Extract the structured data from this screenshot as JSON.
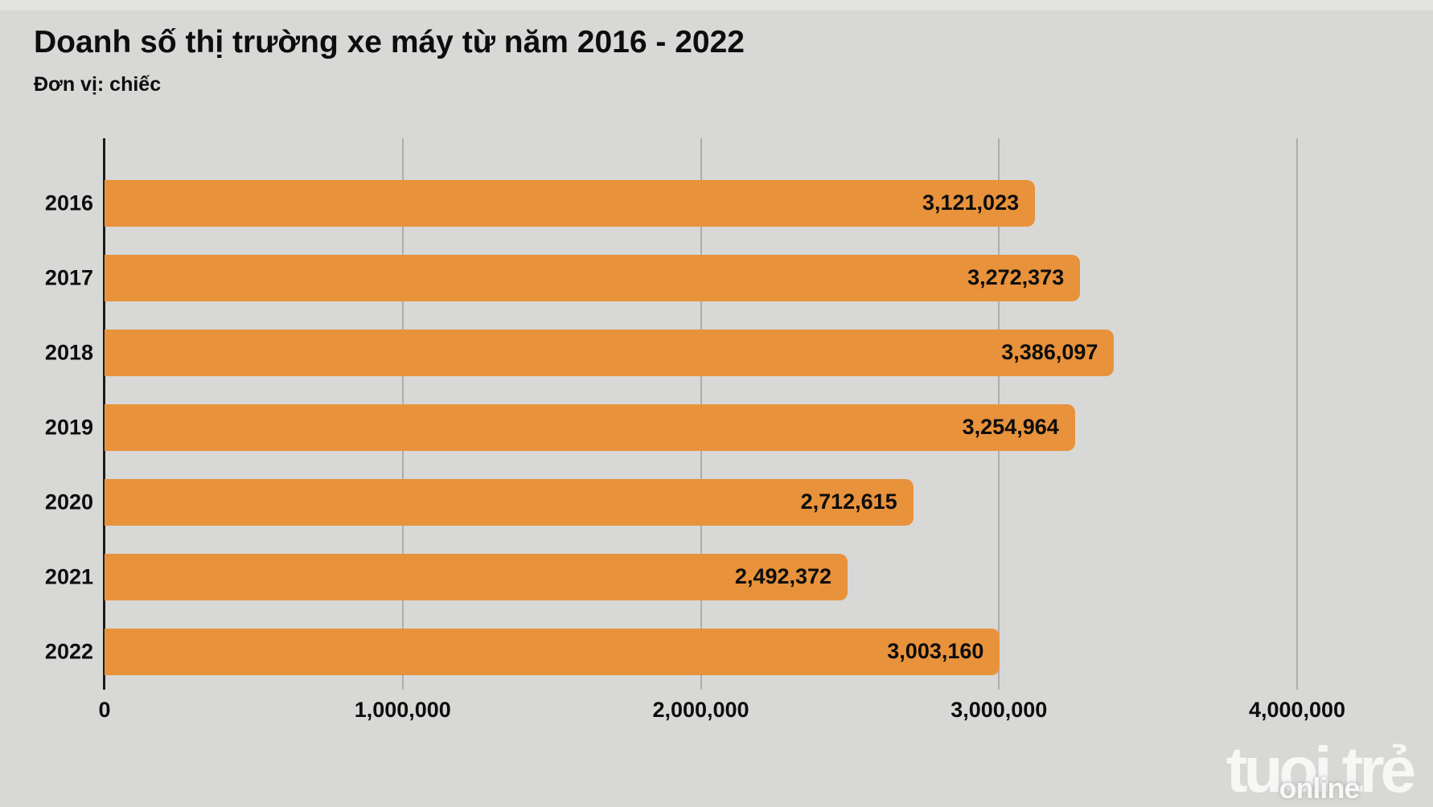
{
  "header": {
    "title": "Doanh số thị trường xe máy từ năm 2016 - 2022",
    "subtitle": "Đơn vị: chiếc"
  },
  "chart_data": {
    "type": "bar",
    "orientation": "horizontal",
    "title": "Doanh số thị trường xe máy từ năm 2016 - 2022",
    "unit_label": "Đơn vị: chiếc",
    "categories": [
      "2016",
      "2017",
      "2018",
      "2019",
      "2020",
      "2021",
      "2022"
    ],
    "values": [
      3121023,
      3272373,
      3386097,
      3254964,
      2712615,
      2492372,
      3003160
    ],
    "value_labels": [
      "3,121,023",
      "3,272,373",
      "3,386,097",
      "3,254,964",
      "2,712,615",
      "2,492,372",
      "3,003,160"
    ],
    "xlim": [
      0,
      4000000
    ],
    "x_ticks": [
      {
        "value": 0,
        "label": "0"
      },
      {
        "value": 1000000,
        "label": "1,000,000"
      },
      {
        "value": 2000000,
        "label": "2,000,000"
      },
      {
        "value": 3000000,
        "label": "3,000,000"
      },
      {
        "value": 4000000,
        "label": "4,000,000"
      }
    ],
    "grid": true,
    "legend": false
  },
  "watermark": {
    "line1": "tuoi trẻ",
    "line2": "online"
  },
  "colors": {
    "background": "#d8d8d6",
    "bar": "#e8923c",
    "gridline": "#adadad",
    "axis": "#1c1c1c",
    "text": "#0d0d0d",
    "watermark": "#ffffff"
  }
}
